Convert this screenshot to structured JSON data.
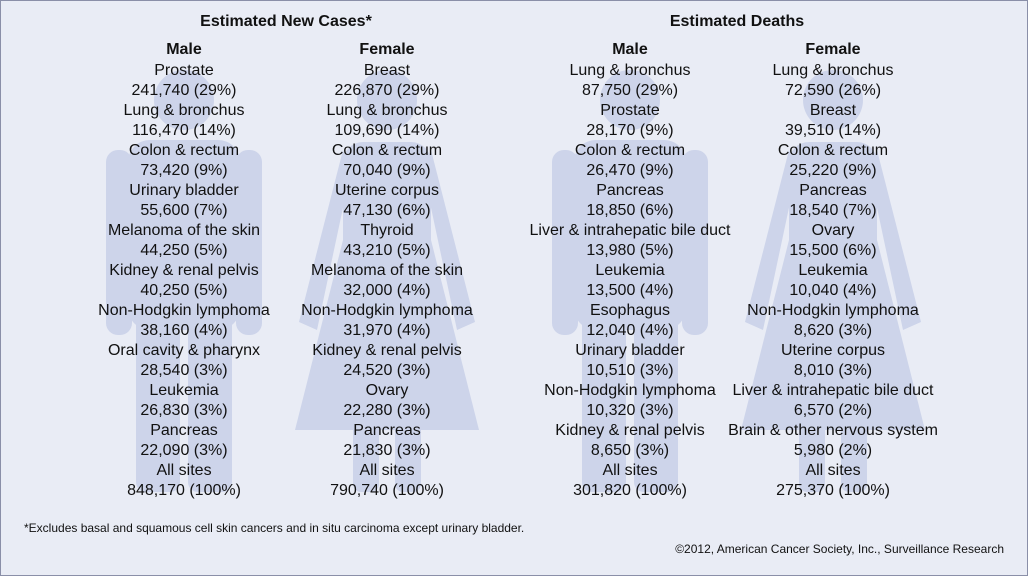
{
  "sections": [
    {
      "title": "Estimated New Cases*",
      "columns": [
        {
          "header": "Male",
          "rows": [
            {
              "site": "Prostate",
              "value": "241,740 (29%)"
            },
            {
              "site": "Lung & bronchus",
              "value": "116,470 (14%)"
            },
            {
              "site": "Colon & rectum",
              "value": "73,420 (9%)"
            },
            {
              "site": "Urinary bladder",
              "value": "55,600 (7%)"
            },
            {
              "site": "Melanoma of the skin",
              "value": "44,250 (5%)"
            },
            {
              "site": "Kidney & renal pelvis",
              "value": "40,250 (5%)"
            },
            {
              "site": "Non-Hodgkin lymphoma",
              "value": "38,160 (4%)"
            },
            {
              "site": "Oral cavity & pharynx",
              "value": "28,540 (3%)"
            },
            {
              "site": "Leukemia",
              "value": "26,830 (3%)"
            },
            {
              "site": "Pancreas",
              "value": "22,090 (3%)"
            },
            {
              "site": "All sites",
              "value": "848,170 (100%)"
            }
          ]
        },
        {
          "header": "Female",
          "rows": [
            {
              "site": "Breast",
              "value": "226,870 (29%)"
            },
            {
              "site": "Lung & bronchus",
              "value": "109,690 (14%)"
            },
            {
              "site": "Colon & rectum",
              "value": "70,040 (9%)"
            },
            {
              "site": "Uterine corpus",
              "value": "47,130 (6%)"
            },
            {
              "site": "Thyroid",
              "value": "43,210 (5%)"
            },
            {
              "site": "Melanoma of the skin",
              "value": "32,000 (4%)"
            },
            {
              "site": "Non-Hodgkin lymphoma",
              "value": "31,970 (4%)"
            },
            {
              "site": "Kidney & renal pelvis",
              "value": "24,520 (3%)"
            },
            {
              "site": "Ovary",
              "value": "22,280 (3%)"
            },
            {
              "site": "Pancreas",
              "value": "21,830 (3%)"
            },
            {
              "site": "All sites",
              "value": "790,740 (100%)"
            }
          ]
        }
      ]
    },
    {
      "title": "Estimated Deaths",
      "columns": [
        {
          "header": "Male",
          "rows": [
            {
              "site": "Lung & bronchus",
              "value": "87,750 (29%)"
            },
            {
              "site": "Prostate",
              "value": "28,170 (9%)"
            },
            {
              "site": "Colon & rectum",
              "value": "26,470 (9%)"
            },
            {
              "site": "Pancreas",
              "value": "18,850 (6%)"
            },
            {
              "site": "Liver & intrahepatic bile duct",
              "value": "13,980 (5%)"
            },
            {
              "site": "Leukemia",
              "value": "13,500 (4%)"
            },
            {
              "site": "Esophagus",
              "value": "12,040 (4%)"
            },
            {
              "site": "Urinary bladder",
              "value": "10,510 (3%)"
            },
            {
              "site": "Non-Hodgkin lymphoma",
              "value": "10,320 (3%)"
            },
            {
              "site": "Kidney & renal pelvis",
              "value": "8,650 (3%)"
            },
            {
              "site": "All sites",
              "value": "301,820 (100%)"
            }
          ]
        },
        {
          "header": "Female",
          "rows": [
            {
              "site": "Lung & bronchus",
              "value": "72,590 (26%)"
            },
            {
              "site": "Breast",
              "value": "39,510 (14%)"
            },
            {
              "site": "Colon & rectum",
              "value": "25,220 (9%)"
            },
            {
              "site": "Pancreas",
              "value": "18,540 (7%)"
            },
            {
              "site": "Ovary",
              "value": "15,500 (6%)"
            },
            {
              "site": "Leukemia",
              "value": "10,040 (4%)"
            },
            {
              "site": "Non-Hodgkin lymphoma",
              "value": "8,620 (3%)"
            },
            {
              "site": "Uterine corpus",
              "value": "8,010 (3%)"
            },
            {
              "site": "Liver & intrahepatic bile duct",
              "value": "6,570 (2%)"
            },
            {
              "site": "Brain & other nervous system",
              "value": "5,980 (2%)"
            },
            {
              "site": "All sites",
              "value": "275,370 (100%)"
            }
          ]
        }
      ]
    }
  ],
  "footnote": "*Excludes basal and squamous cell skin cancers and in situ carcinoma except urinary bladder.",
  "copyright": "©2012, American Cancer Society, Inc., Surveillance Research"
}
